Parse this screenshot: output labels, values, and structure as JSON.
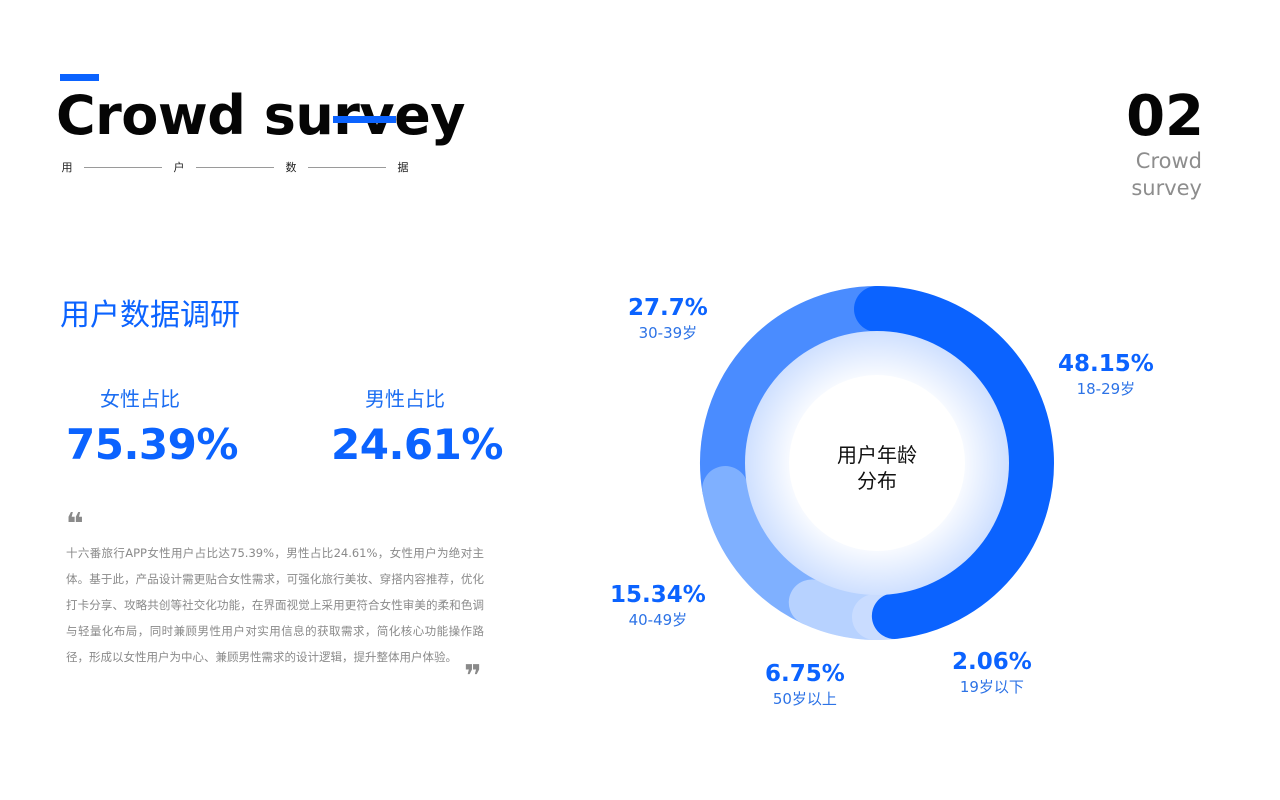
{
  "header": {
    "title": "Crowd survey",
    "subtitle_chars": [
      "用",
      "户",
      "数",
      "据"
    ],
    "page_number": "02",
    "page_subtitle_line1": "Crowd",
    "page_subtitle_line2": "survey"
  },
  "left": {
    "section_title": "用户数据调研",
    "female_label": "女性占比",
    "female_value": "75.39%",
    "male_label": "男性占比",
    "male_value": "24.61%",
    "quote_open": "❝",
    "quote_close": "❞",
    "body": "十六番旅行APP女性用户占比达75.39%，男性占比24.61%，女性用户为绝对主体。基于此，产品设计需更贴合女性需求，可强化旅行美妆、穿搭内容推荐，优化打卡分享、攻略共创等社交化功能，在界面视觉上采用更符合女性审美的柔和色调与轻量化布局，同时兼顾男性用户对实用信息的获取需求，简化核心功能操作路径，形成以女性用户为中心、兼顾男性需求的设计逻辑，提升整体用户体验。"
  },
  "colors": {
    "accent": "#0b63ff",
    "muted_text": "#8a8a8a"
  },
  "chart_data": {
    "type": "pie",
    "center_label_line1": "用户年龄",
    "center_label_line2": "分布",
    "series": [
      {
        "group": "18-29岁",
        "percent_label": "48.15%",
        "value": 48.15,
        "color": "#0b63ff"
      },
      {
        "group": "19岁以下",
        "percent_label": "2.06%",
        "value": 2.06,
        "color": "#c9dcff"
      },
      {
        "group": "50岁以上",
        "percent_label": "6.75%",
        "value": 6.75,
        "color": "#b7d2ff"
      },
      {
        "group": "40-49岁",
        "percent_label": "15.34%",
        "value": 15.34,
        "color": "#7fb0ff"
      },
      {
        "group": "30-39岁",
        "percent_label": "27.7%",
        "value": 27.7,
        "color": "#4a8cff"
      }
    ]
  }
}
